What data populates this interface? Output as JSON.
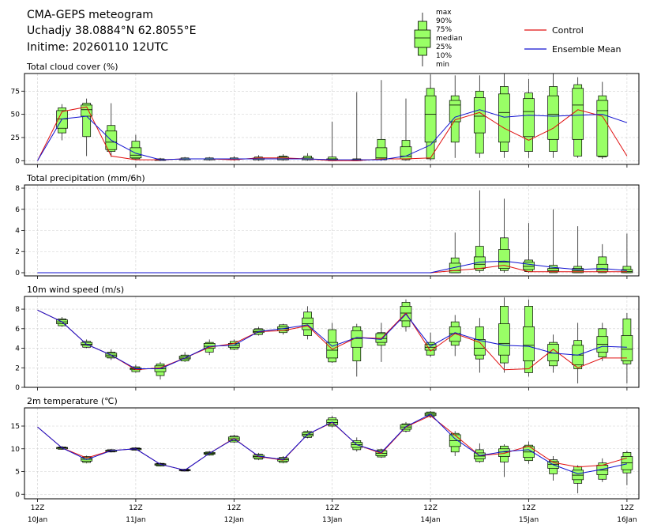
{
  "header": {
    "line1": "CMA-GEPS meteogram",
    "line2": "Uchadjy 38.0884°N 62.8055°E",
    "line3": "Initime: 20260110 12UTC"
  },
  "legend": {
    "box_labels": [
      "max",
      "90%",
      "75%",
      "median",
      "25%",
      "10%",
      "min"
    ],
    "control_label": "Control",
    "mean_label": "Ensemble Mean",
    "colors": {
      "box_fill": "#99ff66",
      "box_edge": "#000000",
      "control": "#e01010",
      "mean": "#1010d0"
    }
  },
  "x_ticks": [
    {
      "index": 0,
      "top": "12Z",
      "bottom": "10Jan"
    },
    {
      "index": 4,
      "top": "12Z",
      "bottom": "11Jan"
    },
    {
      "index": 8,
      "top": "12Z",
      "bottom": "12Jan"
    },
    {
      "index": 12,
      "top": "12Z",
      "bottom": "13Jan"
    },
    {
      "index": 16,
      "top": "12Z",
      "bottom": "14Jan"
    },
    {
      "index": 20,
      "top": "12Z",
      "bottom": "15Jan"
    },
    {
      "index": 24,
      "top": "12Z",
      "bottom": "16Jan"
    }
  ],
  "chart_data": [
    {
      "type": "box",
      "title": "Total cloud cover (%)",
      "ylim": [
        -4,
        94
      ],
      "yticks": [
        0,
        25,
        50,
        75
      ],
      "grid": true,
      "control": [
        0,
        53,
        58,
        5,
        1,
        1,
        2,
        2,
        1,
        3,
        3,
        2,
        0,
        0,
        2,
        2,
        3,
        44,
        52,
        35,
        22,
        35,
        55,
        48,
        5
      ],
      "mean": [
        0,
        45,
        48,
        22,
        8,
        1,
        2,
        2,
        2,
        2,
        2,
        2,
        1,
        1,
        1,
        5,
        17,
        47,
        55,
        47,
        49,
        48,
        49,
        50,
        41
      ],
      "boxes": [
        null,
        [
          22,
          30,
          35,
          45,
          54,
          57,
          61
        ],
        [
          5,
          26,
          48,
          55,
          60,
          62,
          67
        ],
        [
          4,
          10,
          12,
          20,
          32,
          38,
          62
        ],
        [
          1,
          2,
          3,
          6,
          14,
          21,
          28
        ],
        [
          0,
          1,
          1,
          1,
          1,
          2,
          3
        ],
        [
          0,
          1,
          1,
          2,
          2,
          3,
          4
        ],
        [
          0,
          1,
          1,
          2,
          2,
          3,
          4
        ],
        [
          0,
          1,
          1,
          2,
          2,
          3,
          5
        ],
        [
          0,
          1,
          1,
          2,
          3,
          4,
          6
        ],
        [
          0,
          1,
          1,
          2,
          4,
          5,
          7
        ],
        [
          0,
          1,
          1,
          2,
          3,
          5,
          8
        ],
        [
          0,
          0,
          1,
          1,
          2,
          4,
          42
        ],
        [
          0,
          0,
          1,
          1,
          1,
          2,
          74
        ],
        [
          0,
          1,
          1,
          3,
          14,
          23,
          87
        ],
        [
          0,
          1,
          2,
          5,
          15,
          22,
          67
        ],
        [
          0,
          2,
          20,
          50,
          70,
          78,
          93
        ],
        [
          3,
          20,
          42,
          60,
          65,
          70,
          92
        ],
        [
          3,
          8,
          30,
          48,
          68,
          75,
          92
        ],
        [
          3,
          10,
          20,
          52,
          72,
          80,
          94
        ],
        [
          3,
          10,
          26,
          53,
          67,
          73,
          88
        ],
        [
          3,
          10,
          23,
          50,
          70,
          80,
          94
        ],
        [
          3,
          5,
          23,
          60,
          78,
          82,
          90
        ],
        [
          2,
          4,
          5,
          54,
          65,
          70,
          85
        ],
        null
      ]
    },
    {
      "type": "box",
      "title": "Total precipitation (mm/6h)",
      "ylim": [
        -0.3,
        8.3
      ],
      "yticks": [
        0,
        2,
        4,
        6,
        8
      ],
      "grid": true,
      "control": [
        0,
        0,
        0,
        0,
        0,
        0,
        0,
        0,
        0,
        0,
        0,
        0,
        0,
        0,
        0,
        0,
        0,
        0.2,
        0.4,
        0.7,
        0.1,
        0.1,
        0.1,
        0.1,
        0.1
      ],
      "mean": [
        0,
        0,
        0,
        0,
        0,
        0,
        0,
        0,
        0,
        0,
        0,
        0,
        0,
        0,
        0,
        0,
        0,
        0.5,
        1.0,
        1.1,
        0.8,
        0.5,
        0.3,
        0.4,
        0.2
      ],
      "boxes": [
        null,
        null,
        null,
        null,
        null,
        null,
        null,
        null,
        null,
        null,
        null,
        null,
        null,
        null,
        null,
        null,
        null,
        [
          0,
          0,
          0,
          0.2,
          0.9,
          1.4,
          3.8
        ],
        [
          0,
          0.2,
          0.4,
          0.8,
          1.5,
          2.5,
          7.8
        ],
        [
          0,
          0.2,
          0.4,
          1.0,
          2.2,
          3.3,
          7.0
        ],
        [
          0,
          0.1,
          0.3,
          0.6,
          1.0,
          1.2,
          4.7
        ],
        [
          0,
          0,
          0.1,
          0.2,
          0.4,
          0.7,
          6.0
        ],
        [
          0,
          0,
          0,
          0.2,
          0.4,
          0.6,
          4.4
        ],
        [
          0,
          0,
          0.1,
          0.3,
          0.8,
          1.5,
          2.7
        ],
        [
          0,
          0,
          0,
          0.1,
          0.3,
          0.6,
          3.7
        ]
      ]
    },
    {
      "type": "box",
      "title": "10m wind speed (m/s)",
      "ylim": [
        0,
        9.3
      ],
      "yticks": [
        0,
        2,
        4,
        6,
        8
      ],
      "grid": true,
      "control": [
        7.9,
        6.7,
        4.4,
        3.3,
        1.8,
        2.0,
        3.0,
        4.1,
        4.5,
        5.7,
        5.8,
        6.3,
        3.9,
        5.1,
        5.0,
        7.6,
        3.7,
        5.5,
        4.6,
        1.8,
        1.9,
        3.9,
        2.0,
        3.0,
        3.0
      ],
      "mean": [
        7.9,
        6.7,
        4.4,
        3.3,
        1.9,
        1.9,
        3.0,
        4.2,
        4.3,
        5.7,
        6.0,
        6.4,
        4.2,
        5.1,
        4.9,
        7.5,
        4.2,
        5.6,
        4.8,
        4.3,
        4.2,
        3.5,
        3.3,
        4.2,
        4.1
      ],
      "boxes": [
        null,
        [
          6.2,
          6.3,
          6.5,
          6.7,
          6.9,
          7.0,
          7.2
        ],
        [
          4.0,
          4.1,
          4.3,
          4.4,
          4.6,
          4.7,
          4.9
        ],
        [
          2.8,
          3.0,
          3.1,
          3.3,
          3.5,
          3.6,
          3.9
        ],
        [
          1.5,
          1.6,
          1.8,
          1.9,
          2.0,
          2.1,
          2.3
        ],
        [
          0.8,
          1.2,
          1.6,
          1.9,
          2.2,
          2.4,
          2.6
        ],
        [
          2.6,
          2.7,
          2.9,
          3.0,
          3.2,
          3.3,
          3.6
        ],
        [
          3.3,
          3.6,
          4.0,
          4.2,
          4.5,
          4.6,
          4.9
        ],
        [
          3.8,
          3.9,
          4.1,
          4.3,
          4.5,
          4.7,
          4.9
        ],
        [
          5.3,
          5.4,
          5.6,
          5.7,
          5.9,
          6.0,
          6.2
        ],
        [
          5.4,
          5.6,
          5.8,
          6.0,
          6.2,
          6.4,
          6.5
        ],
        [
          4.9,
          5.3,
          5.9,
          6.5,
          7.1,
          7.7,
          8.3
        ],
        [
          2.5,
          2.6,
          3.0,
          3.8,
          4.6,
          5.9,
          6.6
        ],
        [
          1.1,
          2.7,
          4.1,
          5.0,
          5.8,
          6.2,
          6.5
        ],
        [
          2.6,
          4.3,
          4.6,
          5.0,
          5.5,
          5.6,
          6.6
        ],
        [
          5.7,
          6.2,
          6.8,
          7.6,
          8.3,
          8.7,
          9.0
        ],
        [
          3.1,
          3.3,
          3.8,
          4.1,
          4.4,
          4.6,
          5.6
        ],
        [
          3.2,
          4.3,
          4.7,
          5.5,
          6.2,
          6.7,
          7.4
        ],
        [
          1.5,
          2.9,
          3.3,
          4.0,
          4.9,
          6.2,
          7.1
        ],
        [
          1.5,
          2.5,
          3.3,
          4.5,
          6.5,
          8.3,
          9.2
        ],
        [
          1.1,
          1.5,
          2.7,
          4.3,
          6.2,
          8.3,
          9.0
        ],
        [
          1.5,
          2.2,
          2.7,
          3.5,
          4.4,
          4.6,
          5.4
        ],
        [
          0.4,
          1.9,
          2.3,
          3.3,
          4.3,
          4.8,
          6.6
        ],
        [
          2.7,
          3.1,
          3.6,
          4.4,
          5.2,
          6.0,
          6.6
        ],
        [
          0.4,
          2.4,
          2.7,
          3.9,
          5.3,
          7.0,
          7.6
        ]
      ]
    },
    {
      "type": "box",
      "title": "2m temperature (℃)",
      "ylim": [
        -1,
        19
      ],
      "yticks": [
        0,
        5,
        10,
        15
      ],
      "grid": true,
      "control": [
        14.8,
        10.2,
        8.0,
        9.6,
        10.0,
        6.6,
        5.3,
        9.0,
        12.3,
        8.3,
        7.5,
        13.2,
        15.8,
        10.9,
        9.0,
        14.8,
        17.3,
        13.0,
        8.5,
        9.0,
        10.6,
        7.0,
        6.0,
        6.4,
        8.0
      ],
      "mean": [
        14.8,
        10.2,
        7.6,
        9.6,
        10.0,
        6.6,
        5.3,
        9.0,
        12.2,
        8.4,
        7.6,
        13.2,
        15.9,
        10.9,
        9.2,
        14.9,
        17.6,
        12.2,
        8.5,
        9.4,
        9.8,
        6.5,
        4.5,
        5.5,
        6.7
      ],
      "boxes": [
        null,
        [
          9.8,
          9.9,
          10.0,
          10.2,
          10.3,
          10.4,
          10.6
        ],
        [
          6.8,
          7.0,
          7.3,
          7.7,
          8.1,
          8.3,
          8.5
        ],
        [
          9.2,
          9.3,
          9.4,
          9.6,
          9.7,
          9.8,
          10.0
        ],
        [
          9.6,
          9.7,
          9.8,
          10.0,
          10.1,
          10.2,
          10.4
        ],
        [
          6.1,
          6.2,
          6.4,
          6.6,
          6.7,
          6.8,
          7.0
        ],
        [
          5.0,
          5.1,
          5.2,
          5.3,
          5.4,
          5.5,
          5.6
        ],
        [
          8.5,
          8.6,
          8.8,
          9.0,
          9.2,
          9.3,
          9.5
        ],
        [
          11.3,
          11.5,
          11.8,
          12.2,
          12.6,
          12.8,
          13.1
        ],
        [
          7.5,
          7.7,
          8.0,
          8.3,
          8.6,
          8.8,
          9.1
        ],
        [
          6.8,
          7.0,
          7.3,
          7.6,
          7.9,
          8.1,
          8.4
        ],
        [
          12.3,
          12.5,
          12.8,
          13.2,
          13.6,
          13.8,
          14.1
        ],
        [
          14.7,
          15.0,
          15.3,
          15.8,
          16.4,
          16.8,
          17.3
        ],
        [
          9.4,
          9.8,
          10.3,
          10.9,
          11.4,
          11.8,
          12.5
        ],
        [
          8.0,
          8.2,
          8.5,
          9.0,
          9.6,
          9.8,
          10.0
        ],
        [
          13.6,
          13.9,
          14.3,
          14.8,
          15.3,
          15.5,
          15.9
        ],
        [
          16.8,
          17.1,
          17.3,
          17.6,
          17.9,
          18.1,
          18.3
        ],
        [
          8.4,
          9.3,
          10.5,
          11.8,
          13.1,
          13.4,
          13.9
        ],
        [
          6.9,
          7.2,
          7.8,
          8.4,
          9.1,
          9.8,
          11.2
        ],
        [
          3.8,
          7.1,
          8.3,
          9.3,
          10.0,
          10.6,
          11.0
        ],
        [
          6.7,
          7.4,
          8.1,
          9.3,
          10.5,
          10.8,
          11.6
        ],
        [
          3.0,
          4.5,
          5.7,
          6.6,
          7.2,
          7.6,
          8.4
        ],
        [
          0.2,
          2.4,
          3.2,
          4.2,
          5.3,
          6.1,
          6.4
        ],
        [
          2.7,
          3.3,
          4.3,
          5.3,
          6.4,
          6.9,
          7.9
        ],
        [
          2.0,
          4.7,
          5.4,
          6.9,
          8.3,
          9.2,
          9.6
        ]
      ]
    }
  ]
}
